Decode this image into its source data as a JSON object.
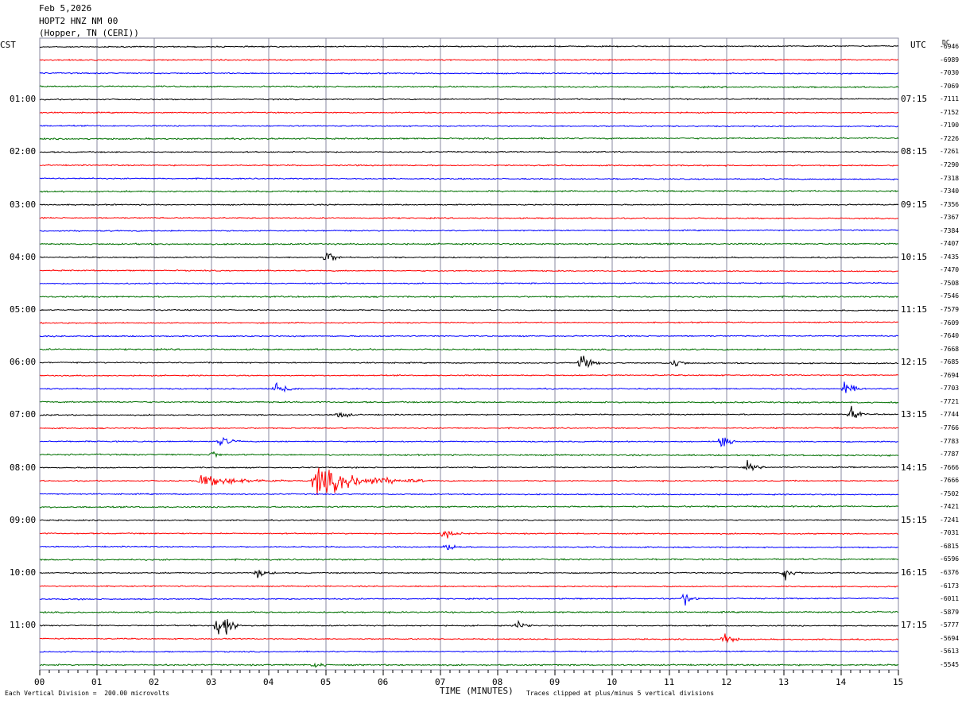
{
  "header": {
    "date": "Feb 5,2026",
    "station": "HOPT2 HNZ NM 00",
    "location": "(Hopper, TN (CERI))"
  },
  "left_tz": "CST",
  "right_tz": "UTC",
  "dc_header": "DC",
  "footer": {
    "scale": "Each Vertical Division =  200.00 microvolts",
    "xlabel": "TIME (MINUTES)",
    "clip_note": "Traces clipped at plus/minus 5 vertical divisions"
  },
  "colors": {
    "trace": [
      "#000000",
      "#ff0000",
      "#0000ff",
      "#007000"
    ],
    "grid": "#8a8aa0"
  },
  "chart_data": {
    "type": "line",
    "title": "HOPT2 HNZ NM 00",
    "xlabel": "TIME (MINUTES)",
    "xlim": [
      0,
      15
    ],
    "x_ticks": [
      "00",
      "01",
      "02",
      "03",
      "04",
      "05",
      "06",
      "07",
      "08",
      "09",
      "10",
      "11",
      "12",
      "13",
      "14",
      "15"
    ],
    "row_minutes": 15,
    "row_count": 48,
    "cst_labels": [
      "01:00",
      "02:00",
      "03:00",
      "04:00",
      "05:00",
      "06:00",
      "07:00",
      "08:00",
      "09:00",
      "10:00",
      "11:00"
    ],
    "utc_labels": [
      "07:15",
      "08:15",
      "09:15",
      "10:15",
      "11:15",
      "12:15",
      "13:15",
      "14:15",
      "15:15",
      "16:15",
      "17:15"
    ],
    "dc_offsets": [
      "-6946",
      "-6989",
      "-7030",
      "-7069",
      "-7111",
      "-7152",
      "-7190",
      "-7226",
      "-7261",
      "-7290",
      "-7318",
      "-7340",
      "-7356",
      "-7367",
      "-7384",
      "-7407",
      "-7435",
      "-7470",
      "-7508",
      "-7546",
      "-7579",
      "-7609",
      "-7640",
      "-7668",
      "-7685",
      "-7694",
      "-7703",
      "-7721",
      "-7744",
      "-7766",
      "-7783",
      "-7787",
      "-7666",
      "-7666",
      "-7502",
      "-7421",
      "-7241",
      "-7031",
      "-6815",
      "-6596",
      "-6376",
      "-6173",
      "-6011",
      "-5879",
      "-5777",
      "-5694",
      "-5613",
      "-5545"
    ],
    "events": [
      {
        "row": 16,
        "minute": 5.0,
        "amp": 14,
        "dur": 0.3
      },
      {
        "row": 24,
        "minute": 9.45,
        "amp": 16,
        "dur": 0.35
      },
      {
        "row": 24,
        "minute": 11.05,
        "amp": 12,
        "dur": 0.3
      },
      {
        "row": 26,
        "minute": 4.1,
        "amp": 15,
        "dur": 0.45
      },
      {
        "row": 26,
        "minute": 14.05,
        "amp": 11,
        "dur": 0.4
      },
      {
        "row": 28,
        "minute": 5.2,
        "amp": 10,
        "dur": 0.3
      },
      {
        "row": 28,
        "minute": 14.15,
        "amp": 15,
        "dur": 0.3
      },
      {
        "row": 30,
        "minute": 3.15,
        "amp": 9,
        "dur": 0.4
      },
      {
        "row": 30,
        "minute": 11.9,
        "amp": 28,
        "dur": 0.25
      },
      {
        "row": 31,
        "minute": 3.0,
        "amp": 10,
        "dur": 0.2
      },
      {
        "row": 32,
        "minute": 12.35,
        "amp": 9,
        "dur": 0.3
      },
      {
        "row": 33,
        "minute": 2.8,
        "amp": 9,
        "dur": 1.6
      },
      {
        "row": 33,
        "minute": 4.8,
        "amp": 24,
        "dur": 1.9
      },
      {
        "row": 37,
        "minute": 7.05,
        "amp": 11,
        "dur": 0.35
      },
      {
        "row": 38,
        "minute": 7.1,
        "amp": 9,
        "dur": 0.3
      },
      {
        "row": 40,
        "minute": 3.8,
        "amp": 8,
        "dur": 0.35
      },
      {
        "row": 40,
        "minute": 13.0,
        "amp": 11,
        "dur": 0.35
      },
      {
        "row": 42,
        "minute": 11.25,
        "amp": 12,
        "dur": 0.3
      },
      {
        "row": 44,
        "minute": 3.1,
        "amp": 40,
        "dur": 0.45
      },
      {
        "row": 44,
        "minute": 8.35,
        "amp": 11,
        "dur": 0.3
      },
      {
        "row": 45,
        "minute": 11.95,
        "amp": 13,
        "dur": 0.3
      },
      {
        "row": 47,
        "minute": 4.8,
        "amp": 6,
        "dur": 0.3
      }
    ]
  }
}
